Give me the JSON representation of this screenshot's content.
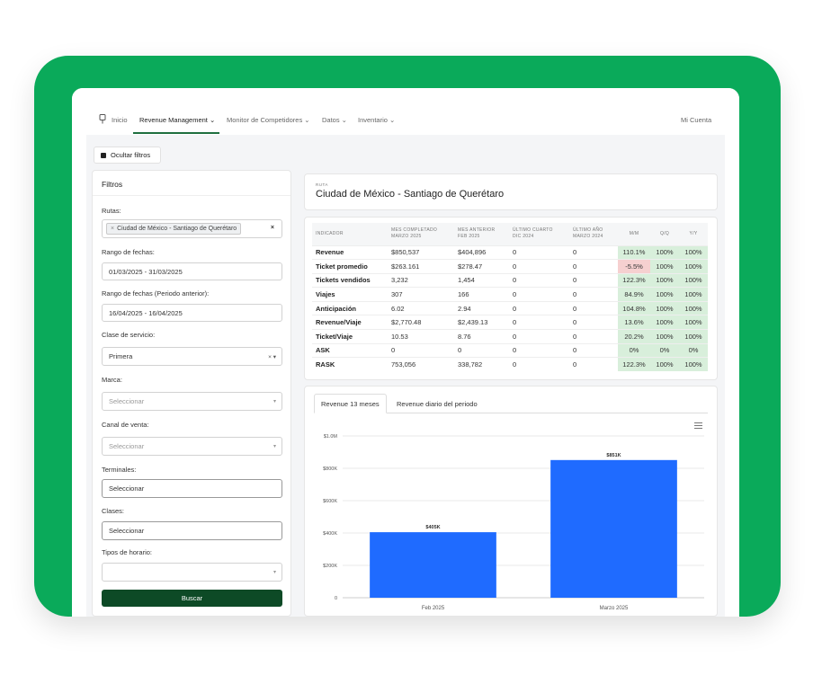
{
  "nav": {
    "items": [
      {
        "label": "Inicio"
      },
      {
        "label": "Revenue Management ⌄"
      },
      {
        "label": "Monitor de Competidores ⌄"
      },
      {
        "label": "Datos ⌄"
      },
      {
        "label": "Inventario ⌄"
      }
    ],
    "account": "Mi Cuenta"
  },
  "hide_filters_label": "Ocultar filtros",
  "filters": {
    "title": "Filtros",
    "rutas_label": "Rutas:",
    "ruta_chip": "Ciudad de México - Santiago de Querétaro",
    "ruta_chip_remove": "×",
    "clear": "×",
    "rango_label": "Rango de fechas:",
    "rango_value": "01/03/2025 - 31/03/2025",
    "rango_prev_label": "Rango de fechas (Periodo anterior):",
    "rango_prev_value": "16/04/2025 - 16/04/2025",
    "clase_label": "Clase de servicio:",
    "clase_value": "Primera",
    "clase_controls": "× ▾",
    "marca_label": "Marca:",
    "marca_placeholder": "Seleccionar",
    "canal_label": "Canal de venta:",
    "canal_placeholder": "Seleccionar",
    "terminales_label": "Terminales:",
    "terminales_placeholder": "Seleccionar",
    "clases_label": "Clases:",
    "clases_placeholder": "Seleccionar",
    "horario_label": "Tipos de horario:",
    "horario_value": "",
    "caret": "▾",
    "search_button": "Buscar"
  },
  "route": {
    "kicker": "RUTA",
    "title": "Ciudad de México - Santiago de Querétaro"
  },
  "metrics": {
    "headers": [
      [
        "INDICADOR",
        ""
      ],
      [
        "MES COMPLETADO",
        "MARZO 2025"
      ],
      [
        "MES ANTERIOR",
        "FEB 2025"
      ],
      [
        "ÚLTIMO CUARTO",
        "DIC 2024"
      ],
      [
        "ÚLTIMO AÑO",
        "MARZO 2024"
      ],
      [
        "M/M",
        ""
      ],
      [
        "Q/Q",
        ""
      ],
      [
        "Y/Y",
        ""
      ]
    ],
    "rows": [
      [
        "Revenue",
        "$850,537",
        "$404,896",
        "0",
        "0",
        "110.1%",
        "100%",
        "100%"
      ],
      [
        "Ticket promedio",
        "$263.161",
        "$278.47",
        "0",
        "0",
        "-5.5%",
        "100%",
        "100%"
      ],
      [
        "Tickets vendidos",
        "3,232",
        "1,454",
        "0",
        "0",
        "122.3%",
        "100%",
        "100%"
      ],
      [
        "Viajes",
        "307",
        "166",
        "0",
        "0",
        "84.9%",
        "100%",
        "100%"
      ],
      [
        "Anticipación",
        "6.02",
        "2.94",
        "0",
        "0",
        "104.8%",
        "100%",
        "100%"
      ],
      [
        "Revenue/Viaje",
        "$2,770.48",
        "$2,439.13",
        "0",
        "0",
        "13.6%",
        "100%",
        "100%"
      ],
      [
        "Ticket/Viaje",
        "10.53",
        "8.76",
        "0",
        "0",
        "20.2%",
        "100%",
        "100%"
      ],
      [
        "ASK",
        "0",
        "0",
        "0",
        "0",
        "0%",
        "0%",
        "0%"
      ],
      [
        "RASK",
        "753,056",
        "338,782",
        "0",
        "0",
        "122.3%",
        "100%",
        "100%"
      ]
    ],
    "colors": {
      "positive": "#d8efdb",
      "negative": "#f6d0d0"
    }
  },
  "chart_tabs": [
    "Revenue 13 meses",
    "Revenue diario del periodo"
  ],
  "chart_data": {
    "type": "bar",
    "categories": [
      "Feb 2025",
      "Marzo 2025"
    ],
    "values": [
      405000,
      851000
    ],
    "data_labels": [
      "$405K",
      "$851K"
    ],
    "yticks": [
      "0",
      "$200K",
      "$400K",
      "$600K",
      "$800K",
      "$1.0M"
    ],
    "ylim": [
      0,
      1000000
    ],
    "color": "#1f6bff",
    "grid": true
  },
  "colors": {
    "frame": "#0aaa5a",
    "nav_active": "#1f6f3f",
    "button": "#0d4a26"
  }
}
